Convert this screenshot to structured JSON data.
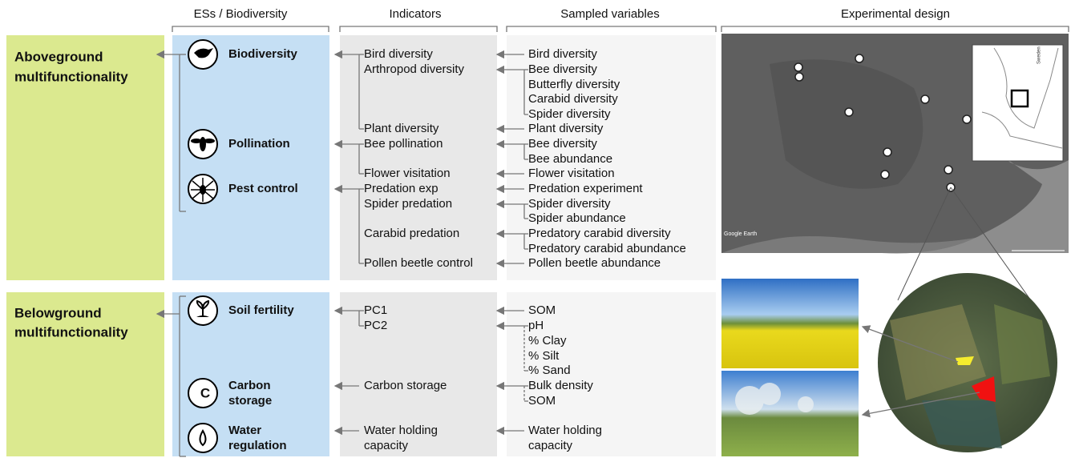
{
  "headers": [
    "ESs / Biodiversity",
    "Indicators",
    "Sampled variables",
    "Experimental design"
  ],
  "groups": [
    [
      "Aboveground",
      "multifunctionality"
    ],
    [
      "Belowground",
      "multifunctionality"
    ]
  ],
  "services": [
    [
      "Biodiversity"
    ],
    [
      "Pollination"
    ],
    [
      "Pest control"
    ],
    [
      "Soil fertility"
    ],
    [
      "Carbon",
      "storage"
    ],
    [
      "Water",
      "regulation"
    ]
  ],
  "indicators": [
    [
      "Bird diversity"
    ],
    [
      "Arthropod diversity"
    ],
    [
      "Plant diversity"
    ],
    [
      "Bee pollination"
    ],
    [
      "Flower visitation"
    ],
    [
      "Predation exp"
    ],
    [
      "Spider predation"
    ],
    [
      "Carabid predation"
    ],
    [
      "Pollen beetle control"
    ],
    [
      "PC1"
    ],
    [
      "PC2"
    ],
    [
      "Carbon storage"
    ],
    [
      "Water holding",
      "capacity"
    ]
  ],
  "variables": [
    [
      "Bird diversity"
    ],
    [
      "Bee diversity"
    ],
    [
      "Butterfly diversity"
    ],
    [
      "Carabid diversity"
    ],
    [
      "Spider diversity"
    ],
    [
      "Plant diversity"
    ],
    [
      "Bee diversity"
    ],
    [
      "Bee abundance"
    ],
    [
      "Flower visitation"
    ],
    [
      "Predation experiment"
    ],
    [
      "Spider diversity"
    ],
    [
      "Spider abundance"
    ],
    [
      "Predatory carabid diversity"
    ],
    [
      "Predatory carabid abundance"
    ],
    [
      "Pollen beetle abundance"
    ],
    [
      "SOM"
    ],
    [
      "pH"
    ],
    [
      "% Clay"
    ],
    [
      "% Silt"
    ],
    [
      "% Sand"
    ],
    [
      "Bulk density"
    ],
    [
      "SOM"
    ],
    [
      "Water holding",
      "capacity"
    ]
  ],
  "map": {
    "watermark": "Google Earth",
    "inset_label": "Sweden"
  }
}
